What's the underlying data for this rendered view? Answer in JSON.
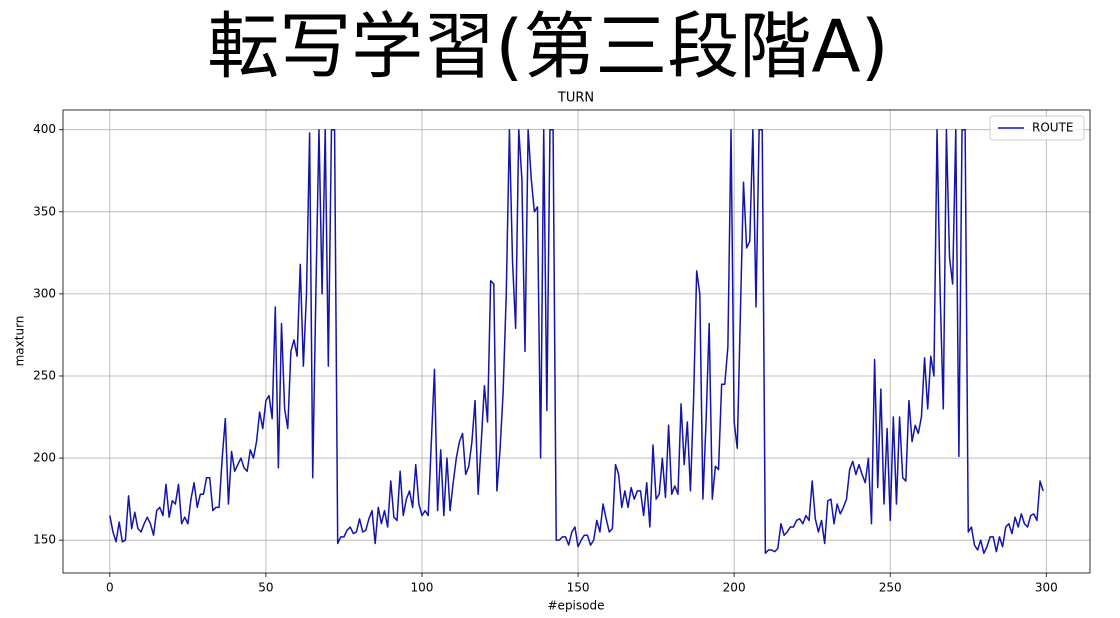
{
  "page_title": "転写学習(第三段階A)",
  "chart_data": {
    "type": "line",
    "title": "TURN",
    "x_label": "#episode",
    "y_label": "maxturn",
    "x": [
      0,
      1,
      2,
      3,
      4,
      5,
      6,
      7,
      8,
      9,
      10,
      11,
      12,
      13,
      14,
      15,
      16,
      17,
      18,
      19,
      20,
      21,
      22,
      23,
      24,
      25,
      26,
      27,
      28,
      29,
      30,
      31,
      32,
      33,
      34,
      35,
      36,
      37,
      38,
      39,
      40,
      41,
      42,
      43,
      44,
      45,
      46,
      47,
      48,
      49,
      50,
      51,
      52,
      53,
      54,
      55,
      56,
      57,
      58,
      59,
      60,
      61,
      62,
      63,
      64,
      65,
      66,
      67,
      68,
      69,
      70,
      71,
      72,
      73,
      74,
      75,
      76,
      77,
      78,
      79,
      80,
      81,
      82,
      83,
      84,
      85,
      86,
      87,
      88,
      89,
      90,
      91,
      92,
      93,
      94,
      95,
      96,
      97,
      98,
      99,
      100,
      101,
      102,
      103,
      104,
      105,
      106,
      107,
      108,
      109,
      110,
      111,
      112,
      113,
      114,
      115,
      116,
      117,
      118,
      119,
      120,
      121,
      122,
      123,
      124,
      125,
      126,
      127,
      128,
      129,
      130,
      131,
      132,
      133,
      134,
      135,
      136,
      137,
      138,
      139,
      140,
      141,
      142,
      143,
      144,
      145,
      146,
      147,
      148,
      149,
      150,
      151,
      152,
      153,
      154,
      155,
      156,
      157,
      158,
      159,
      160,
      161,
      162,
      163,
      164,
      165,
      166,
      167,
      168,
      169,
      170,
      171,
      172,
      173,
      174,
      175,
      176,
      177,
      178,
      179,
      180,
      181,
      182,
      183,
      184,
      185,
      186,
      187,
      188,
      189,
      190,
      191,
      192,
      193,
      194,
      195,
      196,
      197,
      198,
      199,
      200,
      201,
      202,
      203,
      204,
      205,
      206,
      207,
      208,
      209,
      210,
      211,
      212,
      213,
      214,
      215,
      216,
      217,
      218,
      219,
      220,
      221,
      222,
      223,
      224,
      225,
      226,
      227,
      228,
      229,
      230,
      231,
      232,
      233,
      234,
      235,
      236,
      237,
      238,
      239,
      240,
      241,
      242,
      243,
      244,
      245,
      246,
      247,
      248,
      249,
      250,
      251,
      252,
      253,
      254,
      255,
      256,
      257,
      258,
      259,
      260,
      261,
      262,
      263,
      264,
      265,
      266,
      267,
      268,
      269,
      270,
      271,
      272,
      273,
      274,
      275,
      276,
      277,
      278,
      279,
      280,
      281,
      282,
      283,
      284,
      285,
      286,
      287,
      288,
      289,
      290,
      291,
      292,
      293,
      294,
      295,
      296,
      297,
      298,
      299
    ],
    "series": [
      {
        "name": "ROUTE",
        "color": "#1414aa",
        "values": [
          165,
          155,
          149,
          161,
          149,
          150,
          177,
          157,
          167,
          157,
          155,
          160,
          164,
          160,
          153,
          168,
          170,
          165,
          184,
          164,
          174,
          172,
          184,
          160,
          164,
          160,
          175,
          185,
          170,
          178,
          178,
          188,
          188,
          168,
          170,
          170,
          200,
          224,
          172,
          204,
          192,
          196,
          200,
          194,
          192,
          205,
          200,
          210,
          228,
          218,
          235,
          238,
          224,
          292,
          194,
          282,
          230,
          218,
          265,
          272,
          262,
          318,
          256,
          300,
          398,
          188,
          300,
          400,
          300,
          400,
          256,
          400,
          400,
          148,
          152,
          152,
          156,
          158,
          154,
          155,
          163,
          155,
          156,
          163,
          168,
          148,
          170,
          160,
          168,
          158,
          186,
          164,
          162,
          192,
          165,
          175,
          180,
          170,
          196,
          172,
          165,
          168,
          165,
          210,
          254,
          168,
          205,
          165,
          200,
          168,
          185,
          200,
          210,
          215,
          190,
          195,
          210,
          235,
          178,
          210,
          244,
          222,
          308,
          306,
          180,
          205,
          240,
          300,
          400,
          320,
          279,
          400,
          370,
          265,
          400,
          370,
          350,
          353,
          200,
          400,
          229,
          400,
          400,
          150,
          150,
          152,
          152,
          147,
          155,
          158,
          146,
          150,
          153,
          153,
          147,
          150,
          162,
          155,
          172,
          163,
          155,
          157,
          196,
          190,
          170,
          180,
          170,
          182,
          175,
          180,
          180,
          165,
          185,
          158,
          208,
          175,
          178,
          200,
          176,
          220,
          178,
          183,
          178,
          233,
          196,
          222,
          180,
          235,
          314,
          300,
          175,
          222,
          282,
          175,
          195,
          193,
          245,
          245,
          268,
          400,
          222,
          206,
          288,
          368,
          328,
          332,
          400,
          292,
          400,
          400,
          142,
          144,
          144,
          143,
          145,
          160,
          153,
          155,
          158,
          158,
          162,
          163,
          160,
          165,
          162,
          186,
          163,
          155,
          162,
          148,
          174,
          175,
          160,
          172,
          166,
          170,
          175,
          193,
          198,
          190,
          196,
          190,
          185,
          200,
          160,
          260,
          182,
          242,
          172,
          218,
          162,
          225,
          172,
          225,
          188,
          186,
          235,
          210,
          220,
          215,
          225,
          261,
          230,
          262,
          250,
          400,
          300,
          230,
          400,
          322,
          306,
          400,
          201,
          400,
          400,
          155,
          158,
          147,
          144,
          150,
          142,
          146,
          152,
          152,
          143,
          152,
          146,
          158,
          160,
          154,
          164,
          158,
          166,
          160,
          158,
          165,
          166,
          162,
          186,
          180
        ]
      }
    ],
    "xlim": [
      -15,
      314
    ],
    "ylim": [
      130,
      412
    ],
    "xticks": [
      0,
      50,
      100,
      150,
      200,
      250,
      300
    ],
    "yticks": [
      150,
      200,
      250,
      300,
      350,
      400
    ],
    "grid": true,
    "legend": "upper right"
  }
}
